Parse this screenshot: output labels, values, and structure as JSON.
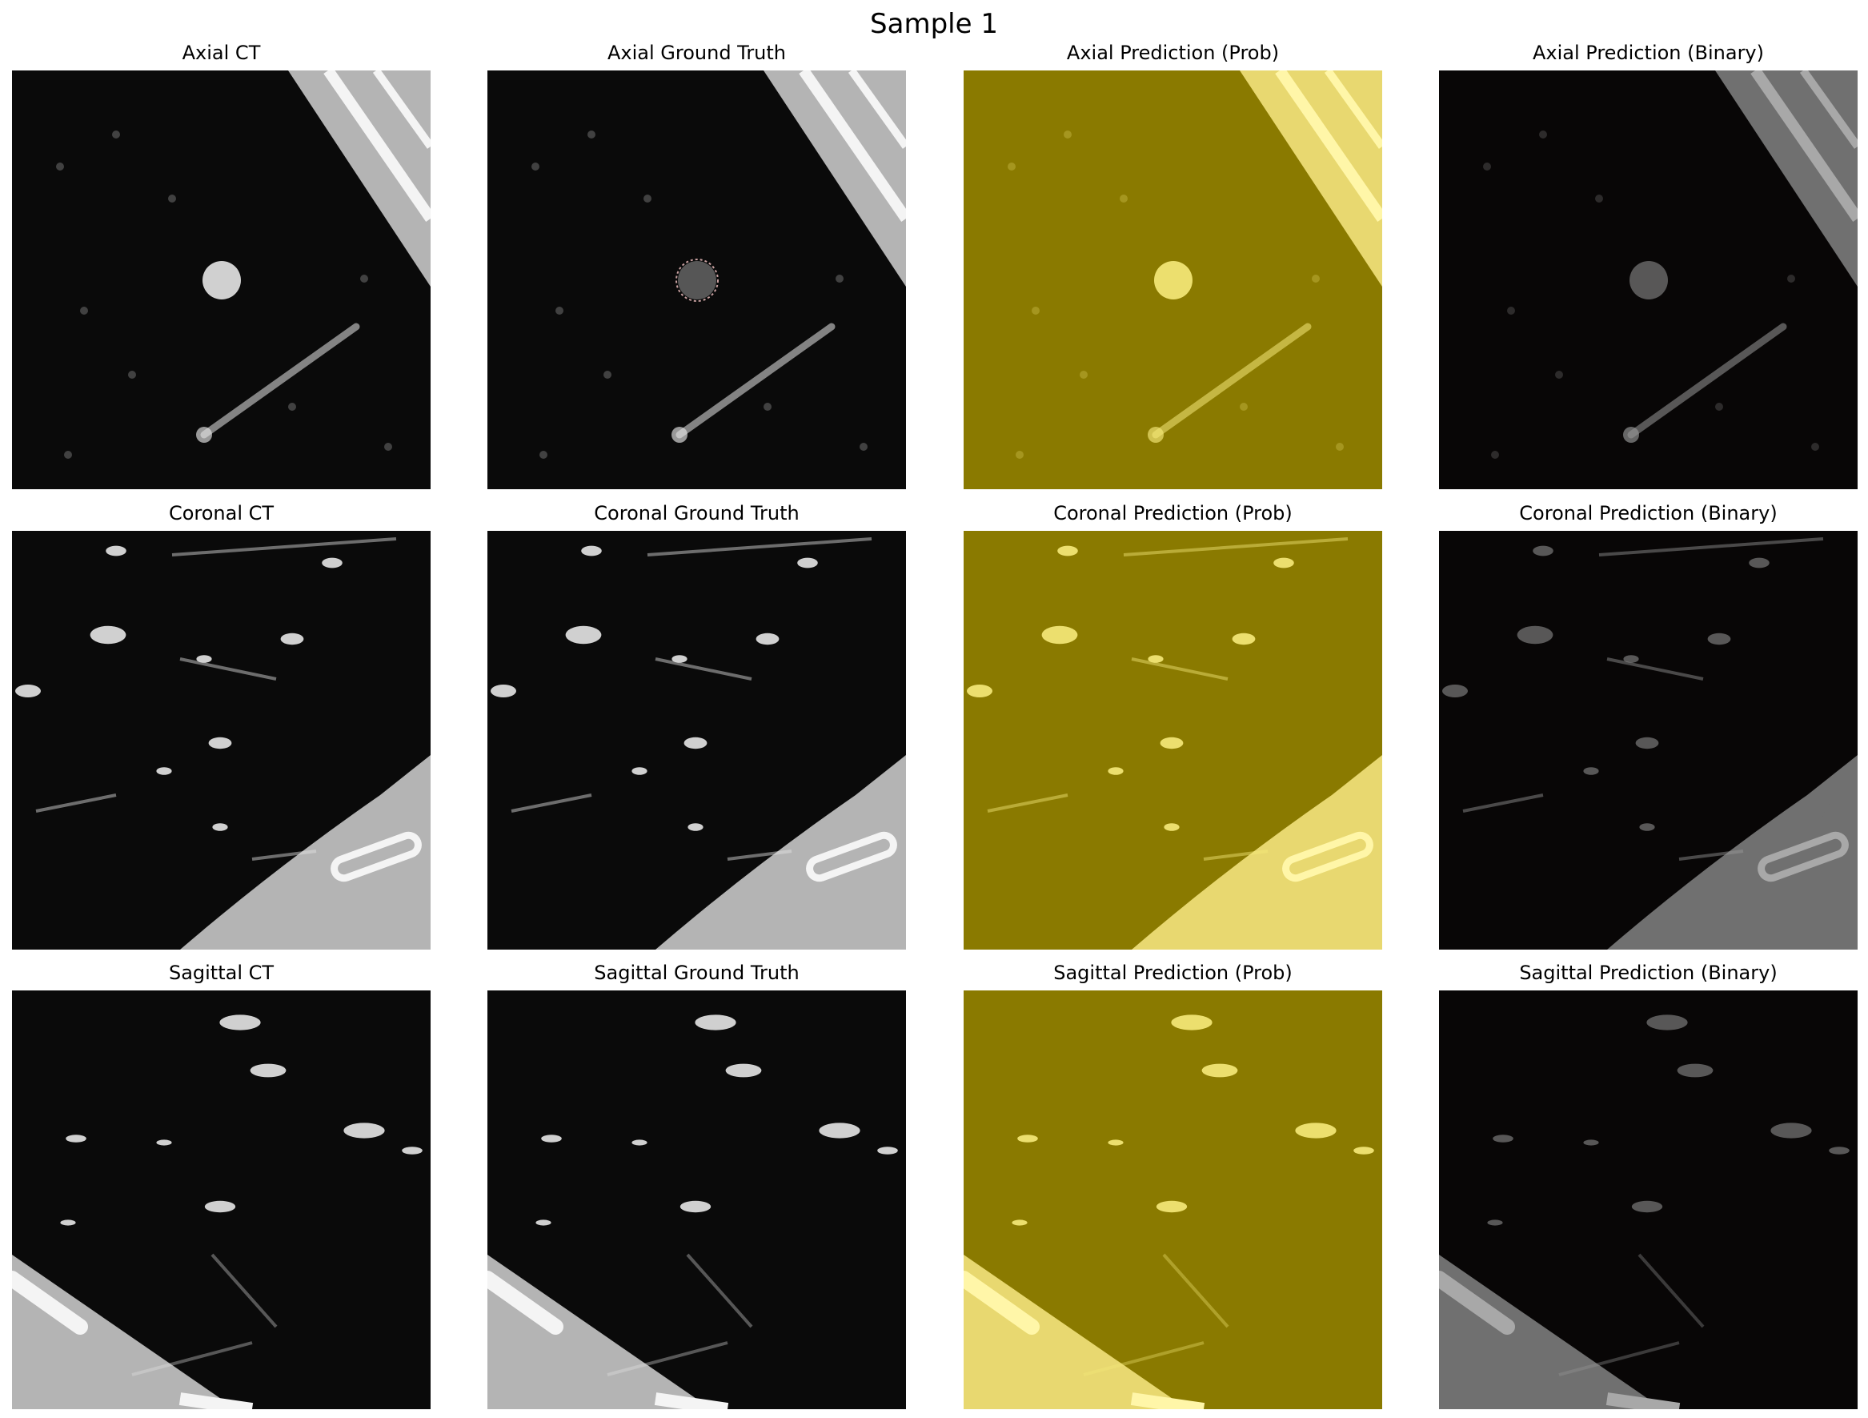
{
  "figure": {
    "title": "Sample 1"
  },
  "panels": [
    {
      "title": "Axial CT",
      "plane": "axial",
      "style": "ct"
    },
    {
      "title": "Axial Ground Truth",
      "plane": "axial",
      "style": "gt"
    },
    {
      "title": "Axial Prediction (Prob)",
      "plane": "axial",
      "style": "prob"
    },
    {
      "title": "Axial Prediction (Binary)",
      "plane": "axial",
      "style": "bin"
    },
    {
      "title": "Coronal CT",
      "plane": "coronal",
      "style": "ct"
    },
    {
      "title": "Coronal Ground Truth",
      "plane": "coronal",
      "style": "gt"
    },
    {
      "title": "Coronal Prediction (Prob)",
      "plane": "coronal",
      "style": "prob"
    },
    {
      "title": "Coronal Prediction (Binary)",
      "plane": "coronal",
      "style": "bin"
    },
    {
      "title": "Sagittal CT",
      "plane": "sagittal",
      "style": "ct"
    },
    {
      "title": "Sagittal Ground Truth",
      "plane": "sagittal",
      "style": "gt"
    },
    {
      "title": "Sagittal Prediction (Prob)",
      "plane": "sagittal",
      "style": "prob"
    },
    {
      "title": "Sagittal Prediction (Binary)",
      "plane": "sagittal",
      "style": "bin"
    }
  ],
  "colors": {
    "ct_background": "#0a0a0a",
    "ct_tissue": "#b4b4b4",
    "ct_bright": "#f4f4f4",
    "prob_overlay": "#8a7a00",
    "prob_tissue": "#e8d870",
    "bin_background": "#080606",
    "bin_tissue": "#707070"
  }
}
